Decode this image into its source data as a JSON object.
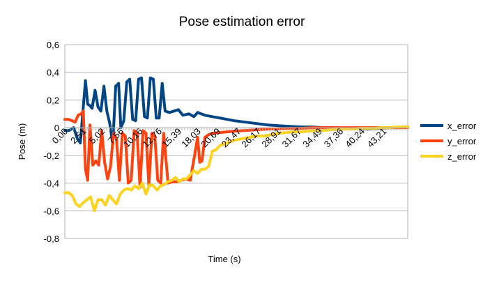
{
  "chart_data": {
    "type": "line",
    "title": "Pose estimation error",
    "xlabel": "Time (s)",
    "ylabel": "Pose (m)",
    "ylim": [
      -0.8,
      0.6
    ],
    "yticks": [
      "0,6",
      "0,4",
      "0,2",
      "0",
      "-0,2",
      "-0,4",
      "-0,6",
      "-0,8"
    ],
    "xticks": [
      "0,00",
      "2,51",
      "5,02",
      "7,56",
      "10,16",
      "12,76",
      "15,39",
      "18,03",
      "20,69",
      "23,47",
      "26,17",
      "28,91",
      "31,67",
      "34,49",
      "37,36",
      "40,24",
      "43,21"
    ],
    "xtick_values": [
      0.0,
      2.51,
      5.02,
      7.56,
      10.16,
      12.76,
      15.39,
      18.03,
      20.69,
      23.47,
      26.17,
      28.91,
      31.67,
      34.49,
      37.36,
      40.24,
      43.21
    ],
    "xlim": [
      0,
      46.5
    ],
    "grid": "horizontal",
    "legend_position": "right",
    "series": [
      {
        "name": "x_error",
        "color": "#004586",
        "x": [
          0.0,
          0.6,
          1.2,
          1.7,
          2.1,
          2.5,
          2.8,
          3.1,
          3.4,
          3.7,
          4.1,
          4.5,
          4.9,
          5.3,
          5.7,
          6.1,
          6.5,
          6.9,
          7.3,
          7.6,
          8.0,
          8.4,
          8.8,
          9.2,
          9.6,
          10.0,
          10.4,
          10.8,
          11.2,
          11.6,
          12.0,
          12.4,
          12.8,
          13.2,
          13.6,
          14.2,
          14.8,
          15.4,
          16.0,
          16.8,
          17.5,
          18.0,
          19.0,
          20.0,
          21.0,
          22.0,
          23.0,
          24.5,
          26.0,
          27.5,
          29.0,
          30.5,
          32.0,
          33.5,
          35.0,
          36.5,
          38.0,
          39.5,
          41.0,
          42.5,
          44.0,
          45.0,
          46.5
        ],
        "y": [
          -0.02,
          -0.02,
          0.0,
          -0.08,
          -0.11,
          0.15,
          0.34,
          0.17,
          0.16,
          0.14,
          0.27,
          0.15,
          0.12,
          0.3,
          0.12,
          0.03,
          -0.12,
          0.3,
          0.32,
          0.0,
          0.05,
          0.33,
          0.35,
          0.06,
          0.05,
          0.35,
          0.36,
          0.08,
          0.07,
          0.36,
          0.35,
          0.07,
          0.07,
          0.32,
          0.12,
          0.11,
          0.12,
          0.13,
          0.09,
          0.1,
          0.08,
          0.11,
          0.09,
          0.08,
          0.07,
          0.06,
          0.05,
          0.04,
          0.03,
          0.02,
          0.015,
          0.01,
          0.005,
          0.005,
          0.0,
          0.0,
          -0.005,
          -0.005,
          -0.01,
          -0.005,
          0.0,
          0.0,
          0.005
        ]
      },
      {
        "name": "y_error",
        "color": "#ff420e",
        "x": [
          0.0,
          0.5,
          1.0,
          1.4,
          1.8,
          2.2,
          2.5,
          2.8,
          3.1,
          3.4,
          3.8,
          4.2,
          4.6,
          5.0,
          5.4,
          5.8,
          6.2,
          6.6,
          7.0,
          7.4,
          7.8,
          8.2,
          8.6,
          9.0,
          9.4,
          9.8,
          10.2,
          10.6,
          11.0,
          11.4,
          11.8,
          12.2,
          12.6,
          13.0,
          13.4,
          14.0,
          14.6,
          15.2,
          15.8,
          16.4,
          17.0,
          17.6,
          18.0,
          18.3,
          18.6,
          19.0,
          19.5,
          20.0,
          21.0,
          22.0,
          23.0,
          24.5,
          26.0,
          27.5,
          29.0,
          30.5,
          32.0,
          33.5,
          35.0,
          36.5,
          38.0,
          39.5,
          41.0,
          42.5,
          44.0,
          45.0,
          46.5
        ],
        "y": [
          0.06,
          0.06,
          0.05,
          0.04,
          0.09,
          0.1,
          0.12,
          -0.3,
          -0.38,
          0.02,
          -0.27,
          -0.24,
          -0.27,
          -0.02,
          -0.25,
          -0.37,
          -0.28,
          -0.04,
          -0.08,
          -0.38,
          -0.04,
          -0.06,
          -0.4,
          -0.38,
          -0.02,
          -0.04,
          -0.43,
          -0.02,
          -0.04,
          -0.42,
          -0.04,
          -0.06,
          -0.38,
          -0.4,
          -0.04,
          -0.4,
          -0.39,
          -0.39,
          -0.38,
          -0.37,
          -0.38,
          -0.2,
          -0.07,
          -0.25,
          -0.24,
          -0.07,
          -0.05,
          -0.04,
          -0.035,
          -0.03,
          -0.025,
          -0.02,
          -0.015,
          -0.01,
          -0.008,
          -0.005,
          -0.005,
          0.0,
          0.0,
          0.0,
          0.0,
          0.0,
          0.0,
          0.0,
          0.0,
          0.0,
          0.0
        ]
      },
      {
        "name": "z_error",
        "color": "#ffd320",
        "x": [
          0.0,
          0.5,
          1.0,
          1.5,
          2.0,
          2.5,
          3.0,
          3.5,
          4.0,
          4.5,
          5.0,
          5.5,
          6.0,
          6.5,
          7.0,
          7.5,
          8.0,
          8.5,
          9.0,
          9.5,
          10.0,
          10.5,
          11.0,
          11.5,
          12.0,
          12.5,
          13.0,
          13.5,
          14.0,
          14.5,
          15.0,
          15.5,
          16.0,
          16.5,
          17.0,
          17.5,
          18.0,
          18.5,
          19.0,
          19.5,
          20.0,
          20.5,
          21.0,
          21.5,
          22.0,
          23.0,
          24.0,
          25.0,
          26.0,
          27.0,
          28.0,
          29.0,
          30.0,
          31.0,
          32.0,
          33.0,
          34.0,
          35.0,
          36.0,
          37.0,
          38.0,
          39.0,
          40.0,
          41.0,
          42.0,
          43.0,
          44.0,
          45.0,
          46.5
        ],
        "y": [
          -0.47,
          -0.47,
          -0.49,
          -0.55,
          -0.57,
          -0.54,
          -0.52,
          -0.5,
          -0.6,
          -0.52,
          -0.52,
          -0.56,
          -0.49,
          -0.52,
          -0.55,
          -0.48,
          -0.45,
          -0.44,
          -0.45,
          -0.42,
          -0.44,
          -0.4,
          -0.48,
          -0.41,
          -0.42,
          -0.45,
          -0.42,
          -0.41,
          -0.39,
          -0.38,
          -0.36,
          -0.39,
          -0.37,
          -0.37,
          -0.34,
          -0.31,
          -0.33,
          -0.3,
          -0.3,
          -0.28,
          -0.17,
          -0.16,
          -0.13,
          -0.12,
          -0.11,
          -0.09,
          -0.08,
          -0.07,
          -0.06,
          -0.06,
          -0.05,
          -0.04,
          -0.035,
          -0.03,
          -0.03,
          -0.025,
          -0.02,
          -0.02,
          -0.015,
          -0.01,
          -0.01,
          -0.01,
          -0.005,
          -0.005,
          -0.005,
          0.0,
          0.0,
          0.005,
          0.005
        ]
      }
    ]
  }
}
